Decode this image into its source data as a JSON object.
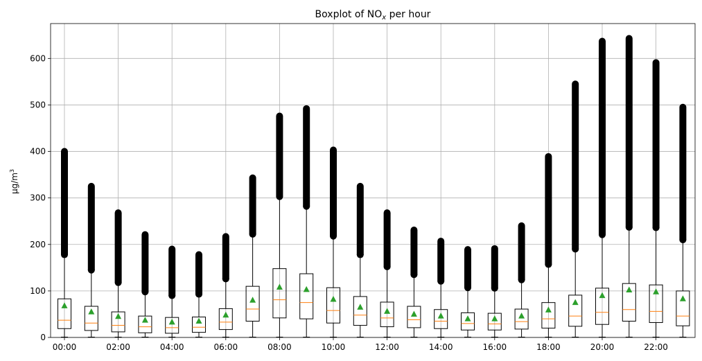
{
  "chart_data": {
    "type": "box",
    "title_main": "Boxplot of NO",
    "title_sub": "x",
    "title_rest": " per hour",
    "ylabel_main": "µg/m",
    "ylabel_sup": "3",
    "xlabel": "",
    "ylim": [
      0,
      675
    ],
    "yticks": [
      0,
      100,
      200,
      300,
      400,
      500,
      600
    ],
    "xtick_labels": [
      "00:00",
      "02:00",
      "04:00",
      "06:00",
      "08:00",
      "10:00",
      "12:00",
      "14:00",
      "16:00",
      "18:00",
      "20:00",
      "22:00"
    ],
    "grid": true,
    "colors": {
      "median": "#ff7f0e",
      "mean": "#2ca02c",
      "flier": "#000000",
      "grid": "#b0b0b0"
    },
    "boxes": [
      {
        "hour": 0,
        "whisker_low": 0,
        "q1": 19,
        "median": 37,
        "q3": 83,
        "whisker_high": 178,
        "mean": 68,
        "flier_max": 400
      },
      {
        "hour": 1,
        "whisker_low": 0,
        "q1": 15,
        "median": 31,
        "q3": 67,
        "whisker_high": 145,
        "mean": 55,
        "flier_max": 325
      },
      {
        "hour": 2,
        "whisker_low": 0,
        "q1": 12,
        "median": 26,
        "q3": 55,
        "whisker_high": 118,
        "mean": 45,
        "flier_max": 268
      },
      {
        "hour": 3,
        "whisker_low": 0,
        "q1": 10,
        "median": 23,
        "q3": 46,
        "whisker_high": 98,
        "mean": 37,
        "flier_max": 221
      },
      {
        "hour": 4,
        "whisker_low": 0,
        "q1": 9,
        "median": 21,
        "q3": 43,
        "whisker_high": 90,
        "mean": 33,
        "flier_max": 190
      },
      {
        "hour": 5,
        "whisker_low": 0,
        "q1": 11,
        "median": 22,
        "q3": 44,
        "whisker_high": 93,
        "mean": 35,
        "flier_max": 178
      },
      {
        "hour": 6,
        "whisker_low": 0,
        "q1": 17,
        "median": 33,
        "q3": 62,
        "whisker_high": 126,
        "mean": 48,
        "flier_max": 217
      },
      {
        "hour": 7,
        "whisker_low": 0,
        "q1": 35,
        "median": 61,
        "q3": 110,
        "whisker_high": 222,
        "mean": 80,
        "flier_max": 343
      },
      {
        "hour": 8,
        "whisker_low": 0,
        "q1": 42,
        "median": 81,
        "q3": 148,
        "whisker_high": 303,
        "mean": 108,
        "flier_max": 476
      },
      {
        "hour": 9,
        "whisker_low": 0,
        "q1": 40,
        "median": 75,
        "q3": 137,
        "whisker_high": 282,
        "mean": 103,
        "flier_max": 492
      },
      {
        "hour": 10,
        "whisker_low": 0,
        "q1": 31,
        "median": 58,
        "q3": 107,
        "whisker_high": 218,
        "mean": 82,
        "flier_max": 403
      },
      {
        "hour": 11,
        "whisker_low": 0,
        "q1": 26,
        "median": 48,
        "q3": 88,
        "whisker_high": 178,
        "mean": 65,
        "flier_max": 325
      },
      {
        "hour": 12,
        "whisker_low": 0,
        "q1": 23,
        "median": 42,
        "q3": 76,
        "whisker_high": 152,
        "mean": 56,
        "flier_max": 268
      },
      {
        "hour": 13,
        "whisker_low": 0,
        "q1": 21,
        "median": 38,
        "q3": 67,
        "whisker_high": 135,
        "mean": 50,
        "flier_max": 231
      },
      {
        "hour": 14,
        "whisker_low": 0,
        "q1": 19,
        "median": 35,
        "q3": 60,
        "whisker_high": 121,
        "mean": 46,
        "flier_max": 207
      },
      {
        "hour": 15,
        "whisker_low": 0,
        "q1": 16,
        "median": 30,
        "q3": 53,
        "whisker_high": 107,
        "mean": 40,
        "flier_max": 189
      },
      {
        "hour": 16,
        "whisker_low": 0,
        "q1": 16,
        "median": 29,
        "q3": 52,
        "whisker_high": 106,
        "mean": 40,
        "flier_max": 191
      },
      {
        "hour": 17,
        "whisker_low": 0,
        "q1": 18,
        "median": 34,
        "q3": 61,
        "whisker_high": 124,
        "mean": 46,
        "flier_max": 240
      },
      {
        "hour": 18,
        "whisker_low": 0,
        "q1": 20,
        "median": 40,
        "q3": 75,
        "whisker_high": 157,
        "mean": 59,
        "flier_max": 389
      },
      {
        "hour": 19,
        "whisker_low": 0,
        "q1": 24,
        "median": 46,
        "q3": 91,
        "whisker_high": 190,
        "mean": 75,
        "flier_max": 545
      },
      {
        "hour": 20,
        "whisker_low": 0,
        "q1": 28,
        "median": 54,
        "q3": 106,
        "whisker_high": 221,
        "mean": 90,
        "flier_max": 637
      },
      {
        "hour": 21,
        "whisker_low": 0,
        "q1": 35,
        "median": 60,
        "q3": 116,
        "whisker_high": 237,
        "mean": 102,
        "flier_max": 643
      },
      {
        "hour": 22,
        "whisker_low": 0,
        "q1": 32,
        "median": 56,
        "q3": 113,
        "whisker_high": 236,
        "mean": 98,
        "flier_max": 591
      },
      {
        "hour": 23,
        "whisker_low": 0,
        "q1": 25,
        "median": 46,
        "q3": 100,
        "whisker_high": 210,
        "mean": 83,
        "flier_max": 495
      }
    ]
  }
}
